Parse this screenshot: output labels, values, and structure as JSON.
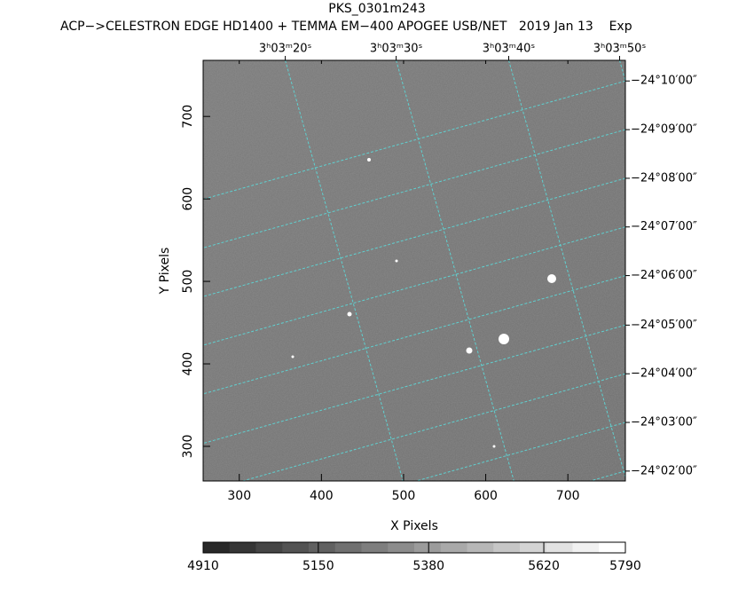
{
  "chart_data": {
    "type": "image",
    "title": "PKS_0301m243",
    "subtitle": "ACP−>CELESTRON EDGE HD1400 + TEMMA EM−400 APOGEE USB/NET   2019 Jan 13    Exp",
    "x_label": "X Pixels",
    "y_label": "Y Pixels",
    "xlim": [
      256,
      770
    ],
    "ylim": [
      258,
      768
    ],
    "xticks": [
      300,
      400,
      500,
      600,
      700
    ],
    "yticks": [
      300,
      400,
      500,
      600,
      700
    ],
    "x2ticks": [
      {
        "value": 356,
        "label": "3ʰ03ᵐ20ˢ"
      },
      {
        "value": 491,
        "label": "3ʰ03ᵐ30ˢ"
      },
      {
        "value": 628,
        "label": "3ʰ03ᵐ40ˢ"
      },
      {
        "value": 763,
        "label": "3ʰ03ᵐ50ˢ"
      }
    ],
    "y2ticks": [
      {
        "value": 743,
        "label": "−24°10′00″"
      },
      {
        "value": 684,
        "label": "−24°09′00″"
      },
      {
        "value": 625,
        "label": "−24°08′00″"
      },
      {
        "value": 566,
        "label": "−24°07′00″"
      },
      {
        "value": 507,
        "label": "−24°06′00″"
      },
      {
        "value": 447,
        "label": "−24°05′00″"
      },
      {
        "value": 388,
        "label": "−24°04′00″"
      },
      {
        "value": 329,
        "label": "−24°03′00″"
      },
      {
        "value": 270,
        "label": "−24°02′00″"
      }
    ],
    "clim": [
      4910,
      5790
    ],
    "cticks": [
      4910,
      5150,
      5380,
      5620,
      5790
    ],
    "grid": true,
    "grid_color": "#5fd0d0"
  }
}
